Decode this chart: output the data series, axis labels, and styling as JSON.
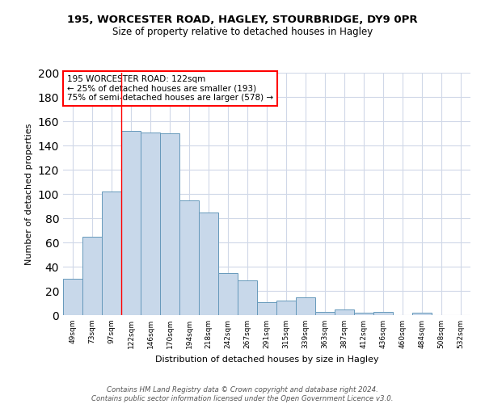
{
  "title1": "195, WORCESTER ROAD, HAGLEY, STOURBRIDGE, DY9 0PR",
  "title2": "Size of property relative to detached houses in Hagley",
  "xlabel": "Distribution of detached houses by size in Hagley",
  "ylabel": "Number of detached properties",
  "bin_labels": [
    "49sqm",
    "73sqm",
    "97sqm",
    "122sqm",
    "146sqm",
    "170sqm",
    "194sqm",
    "218sqm",
    "242sqm",
    "267sqm",
    "291sqm",
    "315sqm",
    "339sqm",
    "363sqm",
    "387sqm",
    "412sqm",
    "436sqm",
    "460sqm",
    "484sqm",
    "508sqm",
    "532sqm"
  ],
  "bar_values": [
    30,
    65,
    102,
    152,
    151,
    150,
    95,
    85,
    35,
    29,
    11,
    12,
    15,
    3,
    5,
    2,
    3,
    0,
    2,
    0,
    0
  ],
  "bar_color": "#c8d8ea",
  "bar_edge_color": "#6699bb",
  "red_line_bin_index": 3,
  "annotation_text": "195 WORCESTER ROAD: 122sqm\n← 25% of detached houses are smaller (193)\n75% of semi-detached houses are larger (578) →",
  "grid_color": "#d0d8e8",
  "footnote": "Contains HM Land Registry data © Crown copyright and database right 2024.\nContains public sector information licensed under the Open Government Licence v3.0.",
  "ylim": [
    0,
    200
  ],
  "yticks": [
    0,
    20,
    40,
    60,
    80,
    100,
    120,
    140,
    160,
    180,
    200
  ]
}
